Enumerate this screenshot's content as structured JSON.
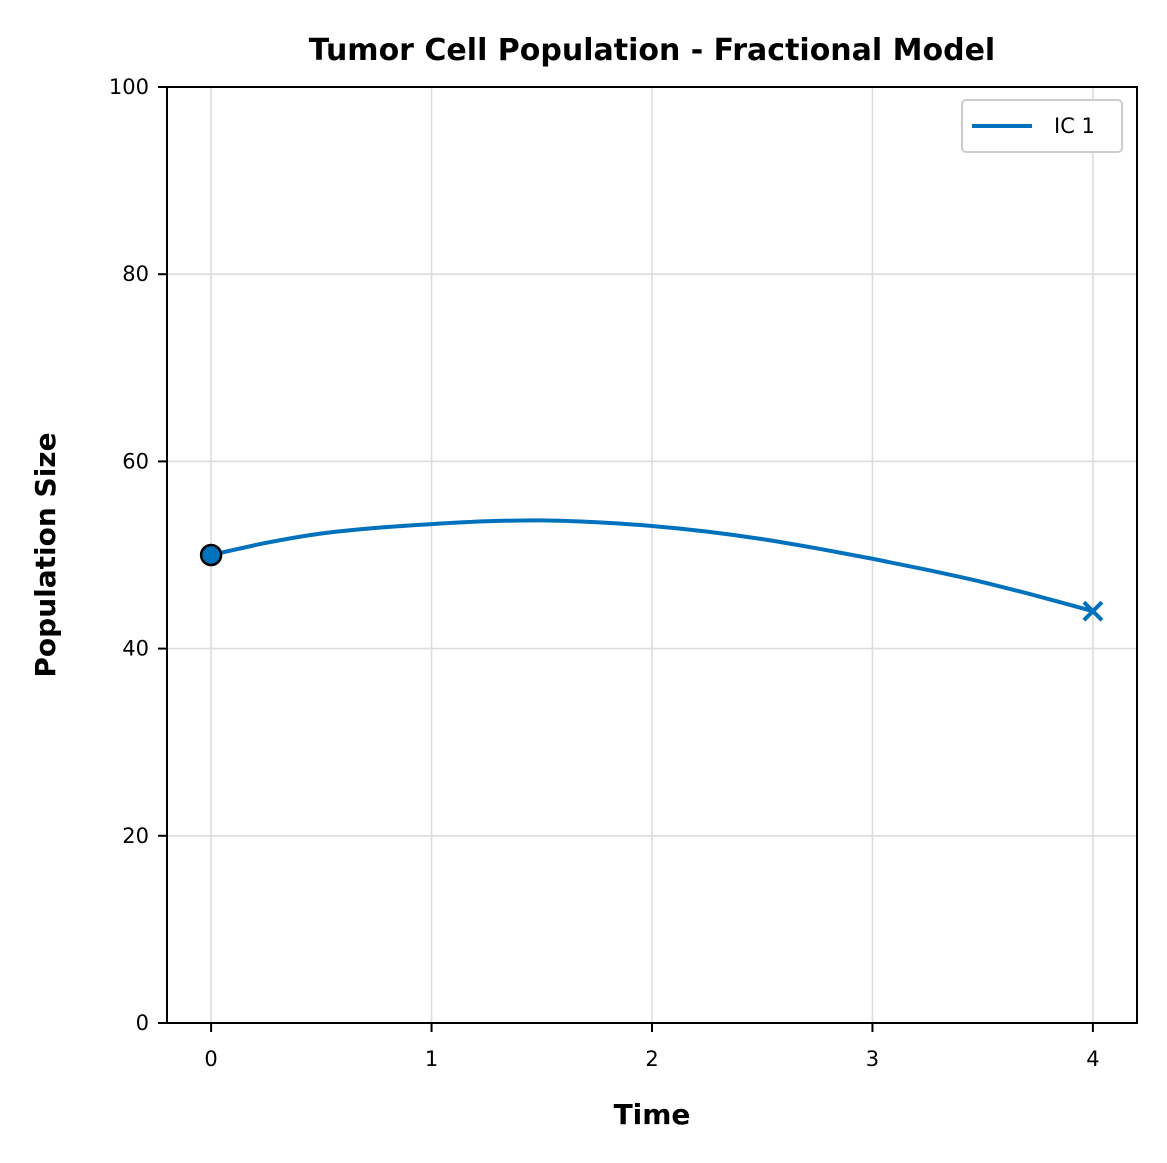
{
  "chart_data": {
    "type": "line",
    "title": "Tumor Cell Population - Fractional Model",
    "xlabel": "Time",
    "ylabel": "Population Size",
    "xlim": [
      -0.2,
      4.2
    ],
    "ylim": [
      0,
      100
    ],
    "xticks": [
      0,
      1,
      2,
      3,
      4
    ],
    "yticks": [
      0,
      20,
      40,
      60,
      80,
      100
    ],
    "grid": true,
    "legend_position": "top-right",
    "series": [
      {
        "name": "IC 1",
        "color": "#0072bd",
        "x": [
          0,
          0.25,
          0.5,
          0.75,
          1.0,
          1.25,
          1.5,
          1.75,
          2.0,
          2.25,
          2.5,
          2.75,
          3.0,
          3.25,
          3.5,
          3.75,
          4.0
        ],
        "y": [
          50.0,
          51.3,
          52.3,
          52.9,
          53.3,
          53.6,
          53.7,
          53.5,
          53.1,
          52.5,
          51.7,
          50.7,
          49.6,
          48.4,
          47.1,
          45.6,
          44.0
        ],
        "start_marker": "circle",
        "end_marker": "x"
      }
    ]
  }
}
